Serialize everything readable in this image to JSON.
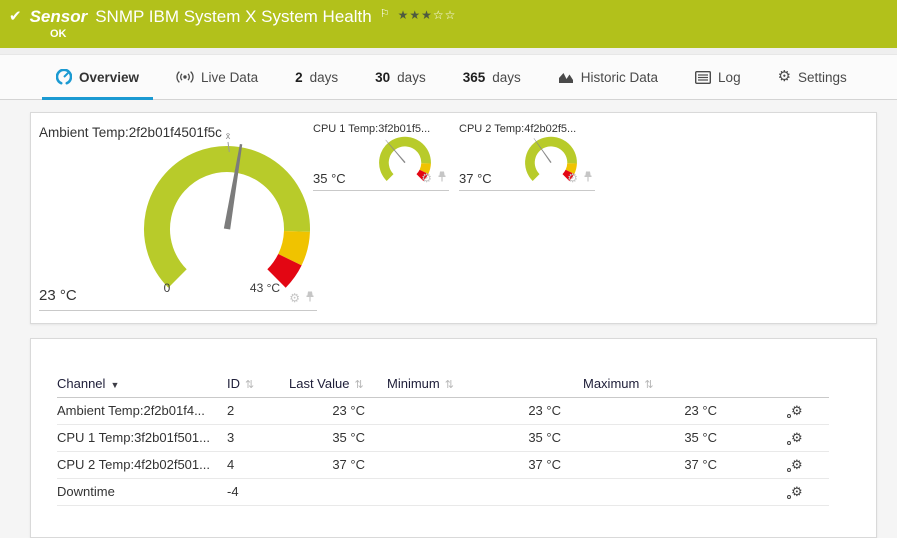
{
  "header": {
    "check_glyph": "✔",
    "kicker": "Sensor",
    "title": "SNMP IBM System X System Health",
    "flag_glyph": "⚐",
    "stars_filled": "★★★",
    "stars_empty": "☆☆",
    "status": "OK"
  },
  "tabs": [
    {
      "label": "Overview",
      "active": true
    },
    {
      "label": "Live Data"
    },
    {
      "prefix": "2",
      "label": "days"
    },
    {
      "prefix": "30",
      "label": "days"
    },
    {
      "prefix": "365",
      "label": "days"
    },
    {
      "label": "Historic Data"
    },
    {
      "label": "Log"
    },
    {
      "label": "Settings"
    }
  ],
  "gauges": [
    {
      "name": "Ambient Temp:2f2b01f4501f5c",
      "value": 23,
      "min": 0,
      "max": 43,
      "display_value": "23 °C",
      "scale_min_label": "0",
      "scale_max_label": "43 °C",
      "avg_marker": "x̄"
    },
    {
      "name": "CPU 1 Temp:3f2b01f5...",
      "value": 35,
      "min": 0,
      "max": 100,
      "display_value": "35 °C"
    },
    {
      "name": "CPU 2 Temp:4f2b02f5...",
      "value": 37,
      "min": 0,
      "max": 100,
      "display_value": "37 °C"
    }
  ],
  "icons": {
    "gear": "⚙",
    "channel_settings": "⚙",
    "sorted_desc": "▼",
    "sortable": "⇅"
  },
  "table": {
    "columns": [
      "Channel",
      "ID",
      "Last Value",
      "Minimum",
      "Maximum"
    ],
    "rows": [
      {
        "channel": "Ambient Temp:2f2b01f4...",
        "id": "2",
        "last_value": "23 °C",
        "minimum": "23 °C",
        "maximum": "23 °C"
      },
      {
        "channel": "CPU 1 Temp:3f2b01f501...",
        "id": "3",
        "last_value": "35 °C",
        "minimum": "35 °C",
        "maximum": "35 °C"
      },
      {
        "channel": "CPU 2 Temp:4f2b02f501...",
        "id": "4",
        "last_value": "37 °C",
        "minimum": "37 °C",
        "maximum": "37 °C"
      },
      {
        "channel": "Downtime",
        "id": "-4",
        "last_value": "",
        "minimum": "",
        "maximum": ""
      }
    ]
  },
  "colors": {
    "brand_green": "#b2c11b",
    "accent_blue": "#1b9ad2",
    "gauge_green": "#b8cb2a",
    "gauge_yellow": "#f0c300",
    "gauge_red": "#e30613"
  }
}
